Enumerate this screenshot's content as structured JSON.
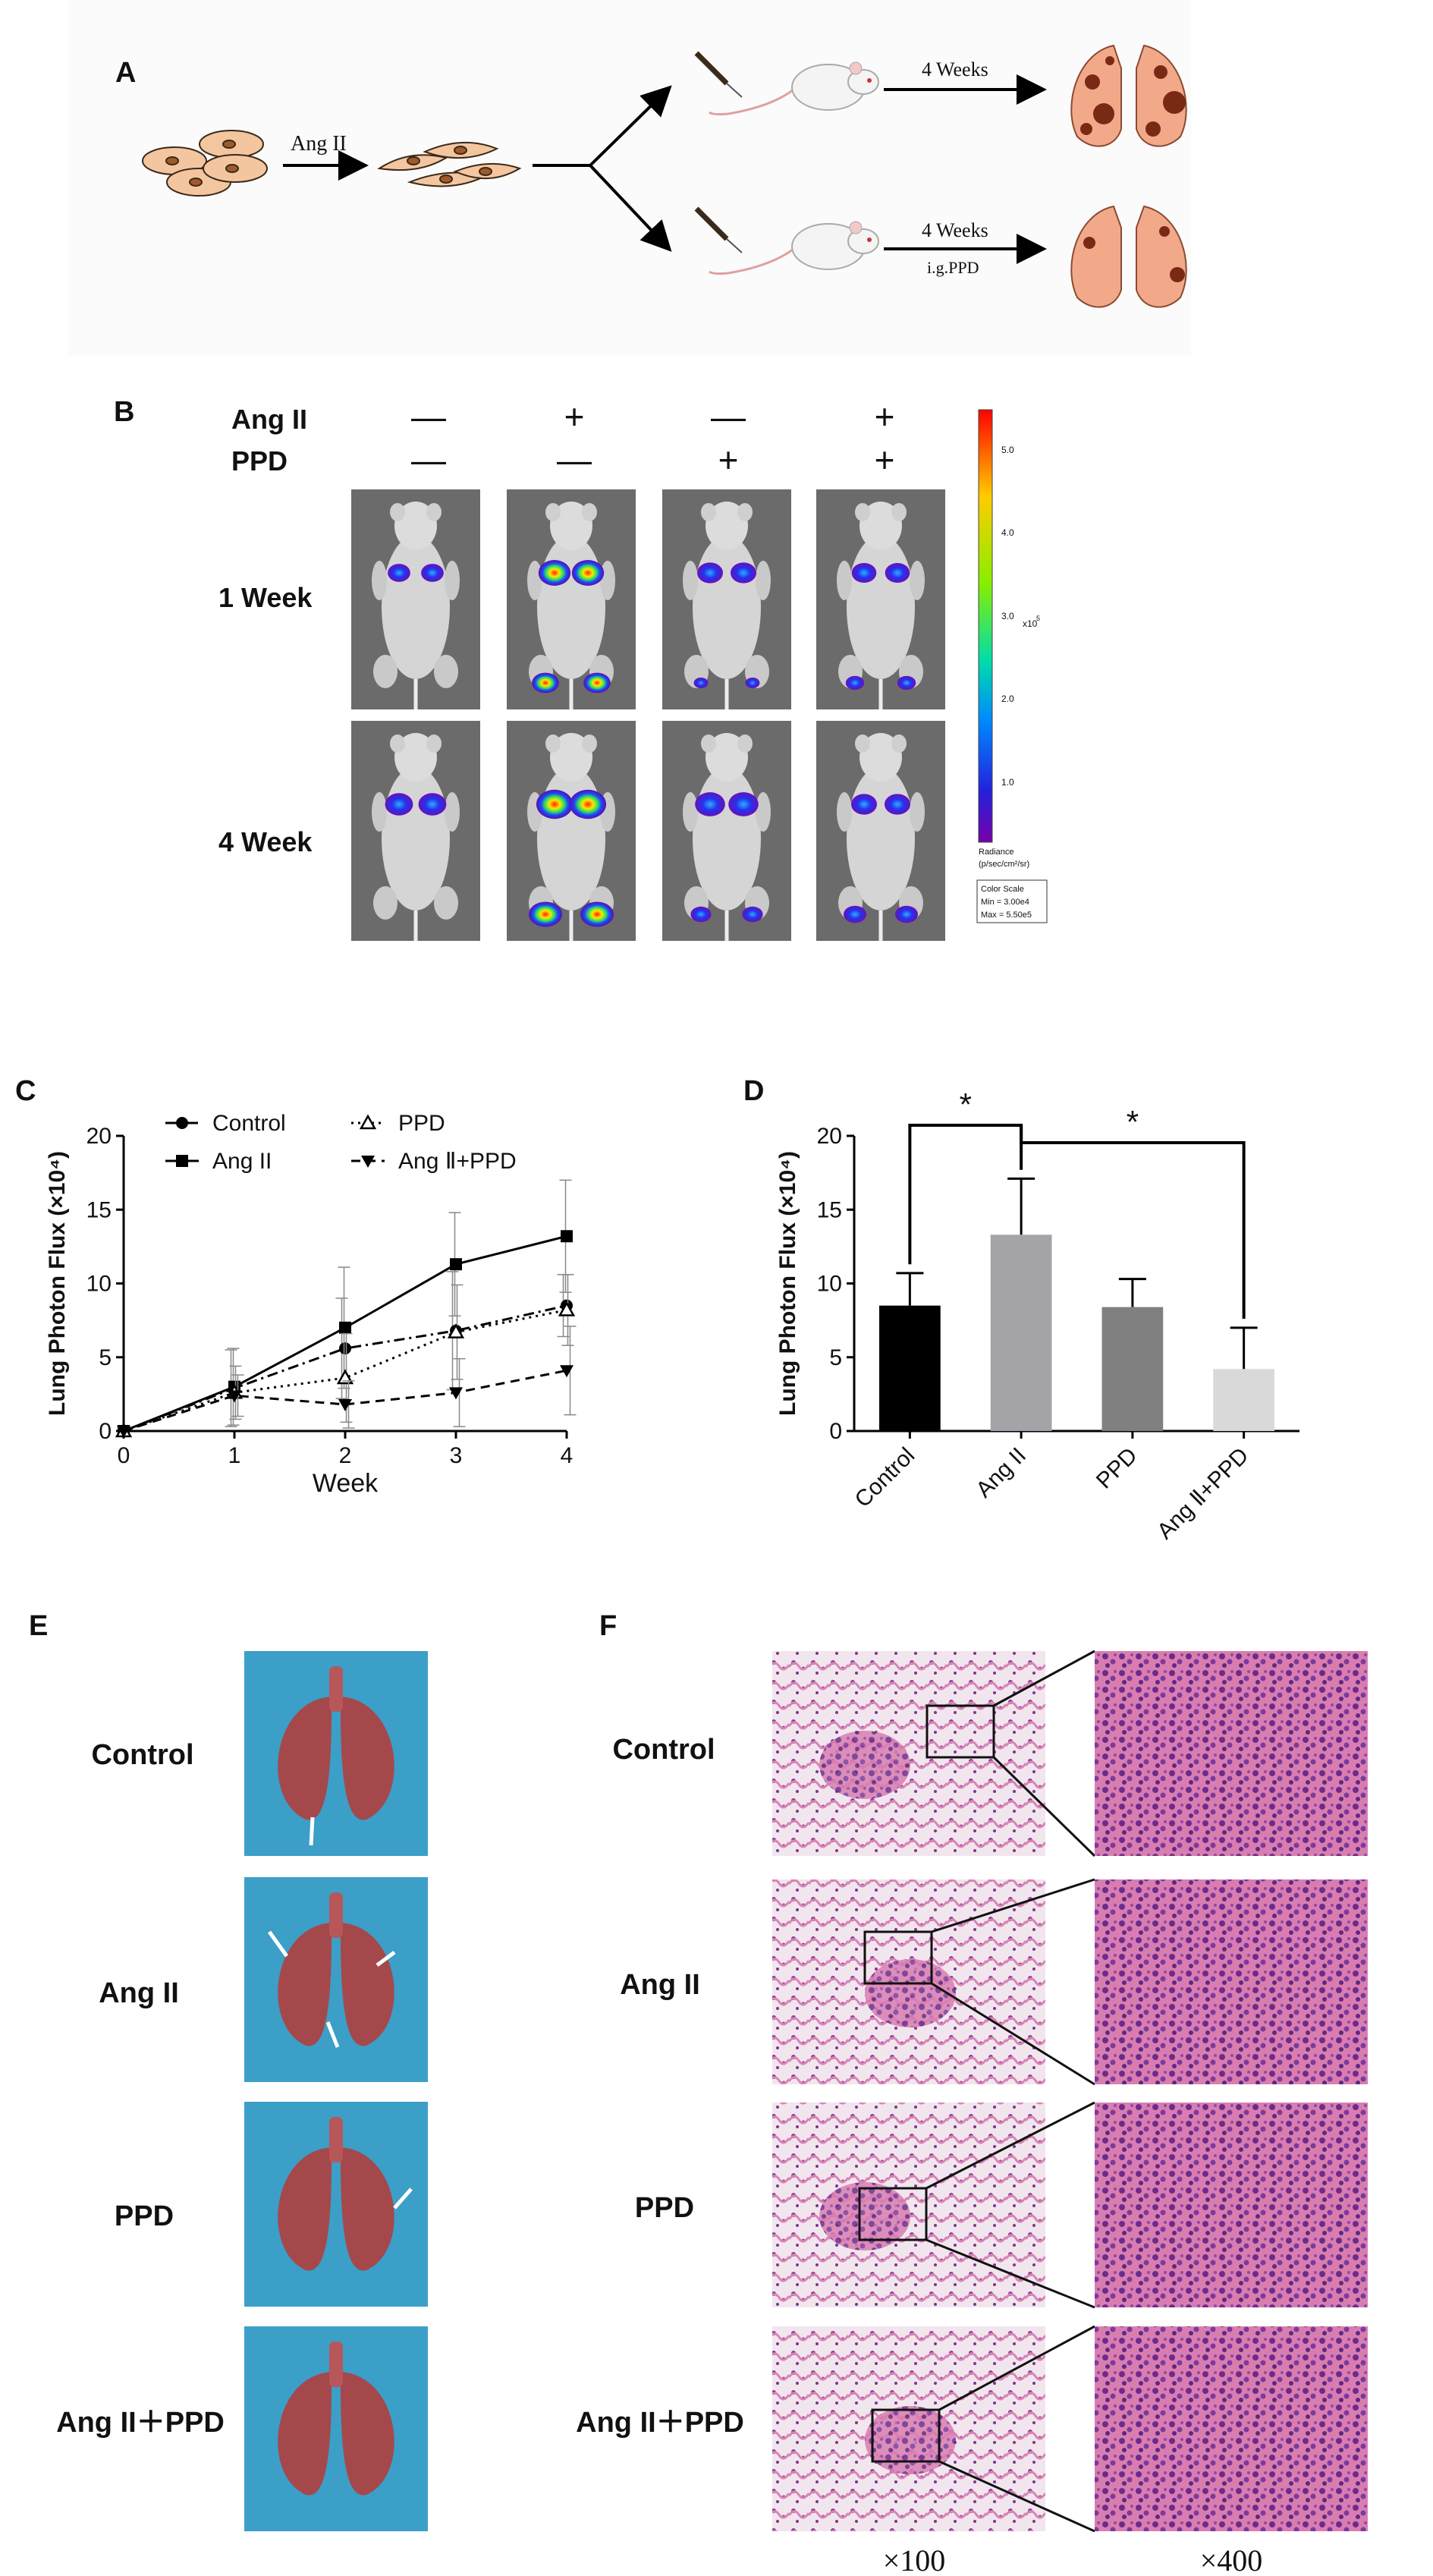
{
  "panels": {
    "A": {
      "letter": "A",
      "treatment_label": "Ang II",
      "upper_arrow_label": "4 Weeks",
      "lower_arrow_label": "4 Weeks",
      "lower_arrow_sublabel": "i.g.PPD"
    },
    "B": {
      "letter": "B",
      "row_labels": [
        "Ang II",
        "PPD"
      ],
      "angii_signs": [
        "—",
        "+",
        "—",
        "+"
      ],
      "ppd_signs": [
        "—",
        "—",
        "+",
        "+"
      ],
      "timepoints": [
        "1 Week",
        "4 Week"
      ],
      "colorbar": {
        "ticks": [
          "5.0",
          "4.0",
          "3.0",
          "2.0",
          "1.0"
        ],
        "exponent": "x10",
        "exponent_power": "5",
        "unit_title": "Radiance",
        "unit": "(p/sec/cm²/sr)",
        "scale_box": [
          "Color Scale",
          "Min = 3.00e4",
          "Max = 5.50e5"
        ]
      }
    },
    "C": {
      "letter": "C"
    },
    "D": {
      "letter": "D",
      "sig_marks": [
        "*",
        "*"
      ]
    },
    "E": {
      "letter": "E",
      "groups": [
        "Control",
        "Ang II",
        "PPD",
        "Ang II＋PPD"
      ]
    },
    "F": {
      "letter": "F",
      "groups": [
        "Control",
        "Ang II",
        "PPD",
        "Ang II＋PPD"
      ],
      "magnifications": [
        "×100",
        "×400"
      ]
    }
  },
  "colors": {
    "photo_bg_E": "#3b9fc8",
    "lung_tissue": "#a5484b",
    "he_pink": "#d87aa8",
    "he_purple": "#6b3a8f",
    "mouse_fur": "#d9d9d9",
    "bar_control": "#000000",
    "bar_angii": "#a3a3a8",
    "bar_ppd": "#808080",
    "bar_combo": "#d9d9d9"
  },
  "chart_data": [
    {
      "type": "line",
      "title": "",
      "xlabel": "Week",
      "ylabel": "Lung Photon Flux (×10⁴)",
      "x": [
        0,
        1,
        2,
        3,
        4
      ],
      "xlim": [
        0,
        4
      ],
      "ylim": [
        0,
        20
      ],
      "yticks": [
        0,
        5,
        10,
        15,
        20
      ],
      "grid": false,
      "legend_position": "top",
      "series": [
        {
          "name": "Control",
          "marker": "circle",
          "line": "dash-dot",
          "values": [
            0,
            2.9,
            5.6,
            6.8,
            8.5
          ],
          "err": [
            0,
            2.6,
            3.4,
            4.0,
            2.1
          ]
        },
        {
          "name": "Ang II",
          "marker": "square",
          "line": "solid",
          "values": [
            0,
            3.0,
            7.0,
            11.3,
            13.2
          ],
          "err": [
            0,
            2.6,
            4.1,
            3.5,
            3.8
          ]
        },
        {
          "name": "PPD",
          "marker": "triangle-open",
          "line": "dotted",
          "values": [
            0,
            2.6,
            3.6,
            6.7,
            8.2
          ],
          "err": [
            0,
            1.8,
            3.0,
            3.2,
            2.4
          ]
        },
        {
          "name": "Ang Ⅱ+PPD",
          "marker": "triangle-down",
          "line": "dashed",
          "values": [
            0,
            2.4,
            1.8,
            2.6,
            4.1
          ],
          "err": [
            0,
            1.4,
            1.6,
            2.3,
            3.0
          ]
        }
      ]
    },
    {
      "type": "bar",
      "title": "",
      "xlabel": "",
      "ylabel": "Lung Photon Flux (×10⁴)",
      "categories": [
        "Control",
        "Ang II",
        "PPD",
        "Ang Ⅱ+PPD"
      ],
      "values": [
        8.5,
        13.3,
        8.4,
        4.2
      ],
      "err": [
        2.2,
        3.8,
        1.9,
        2.8
      ],
      "ylim": [
        0,
        20
      ],
      "yticks": [
        0,
        5,
        10,
        15,
        20
      ],
      "grid": false
    }
  ]
}
